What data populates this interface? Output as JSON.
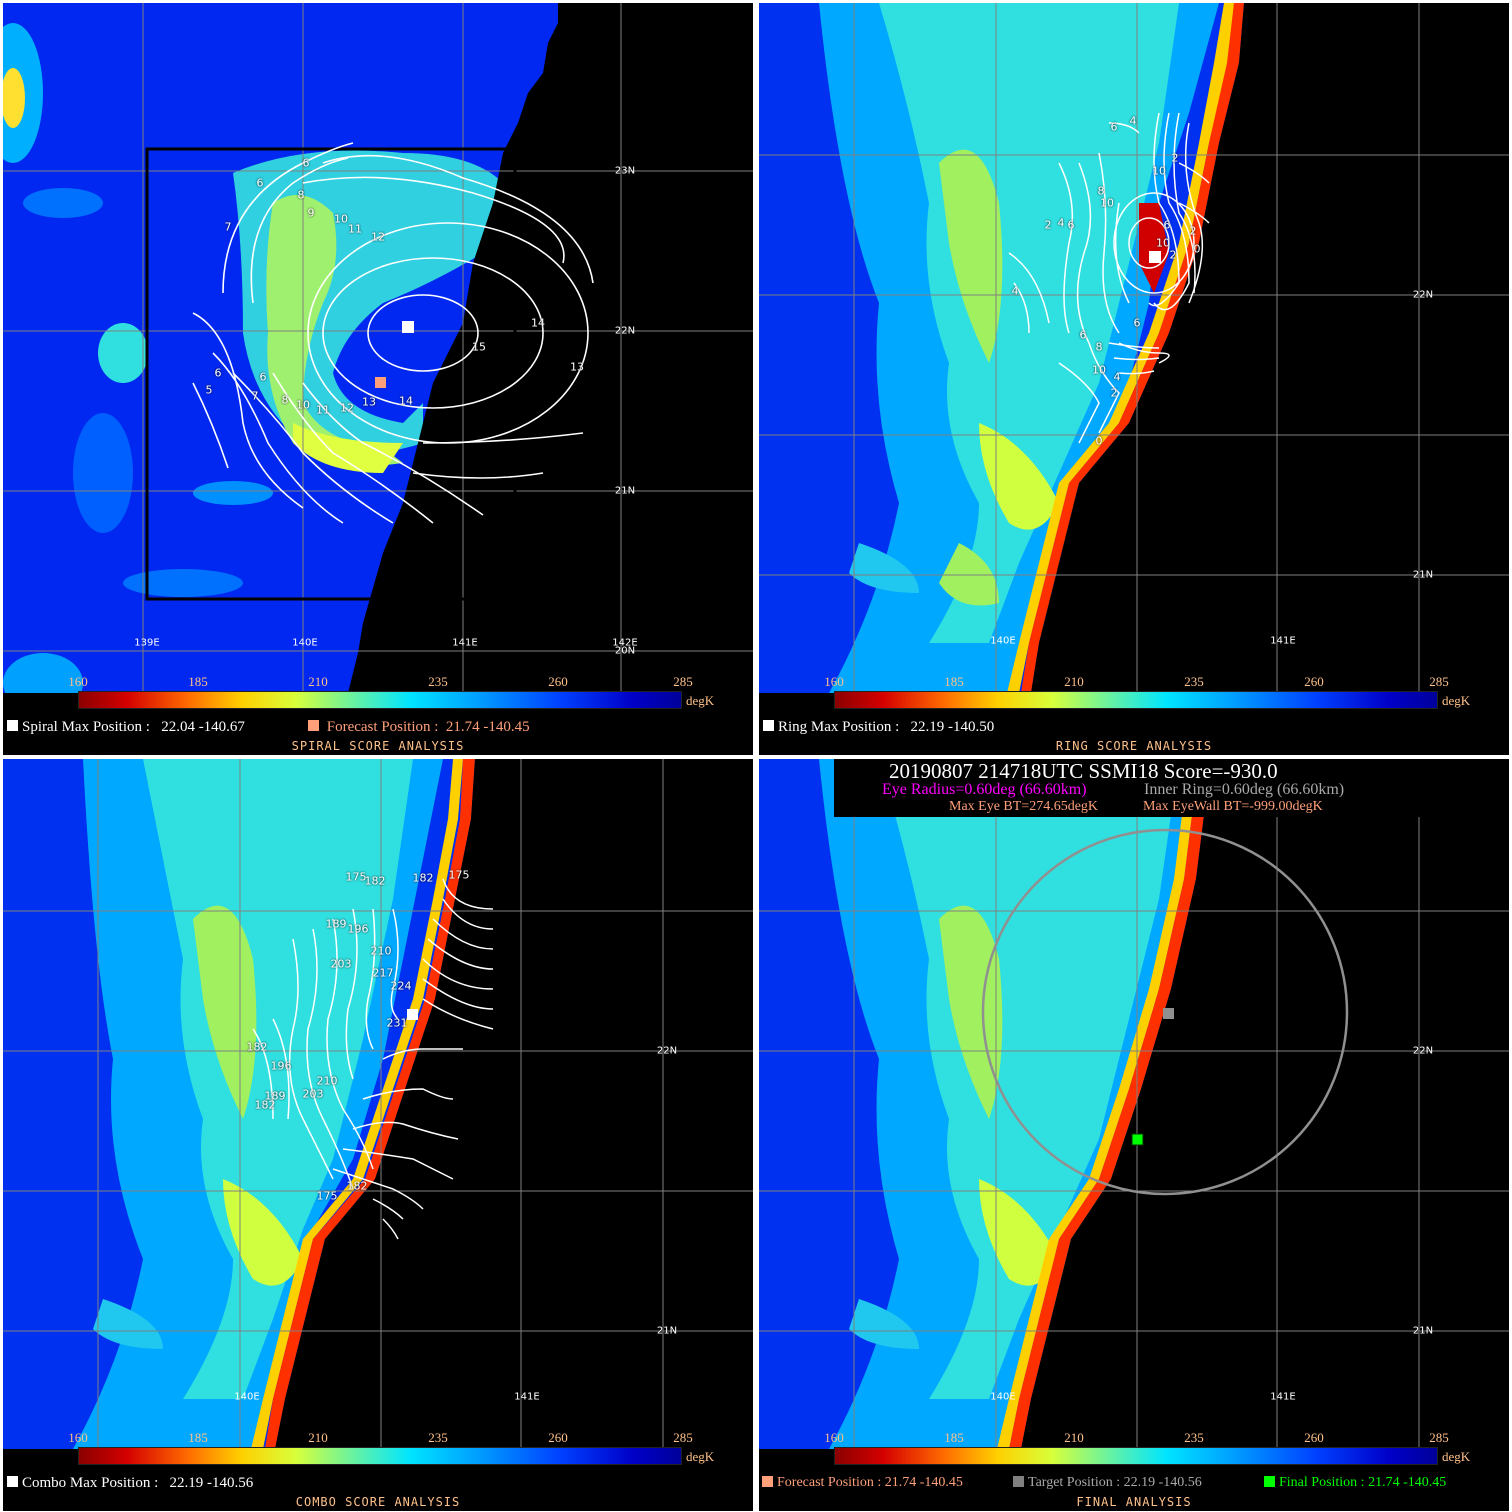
{
  "colorbar": {
    "ticks": [
      "160",
      "185",
      "210",
      "235",
      "260",
      "285"
    ],
    "unit": "degK"
  },
  "panels": {
    "spiral": {
      "title": "SPIRAL SCORE ANALYSIS",
      "max_label": "Spiral Max Position :",
      "max_value": "22.04 -140.67",
      "forecast_label": "Forecast Position :",
      "forecast_value": "21.74 -140.45",
      "lat_labels": [
        "23N",
        "22N",
        "21N",
        "20N"
      ],
      "lon_labels": [
        "139E",
        "140E",
        "141E",
        "142E"
      ],
      "contour_labels": [
        "6",
        "6",
        "8",
        "9",
        "10",
        "11",
        "12",
        "7",
        "6",
        "5",
        "6",
        "7",
        "8",
        "9",
        "10",
        "11",
        "12",
        "13",
        "14",
        "14",
        "15",
        "13"
      ]
    },
    "ring": {
      "title": "RING SCORE ANALYSIS",
      "max_label": "Ring Max Position :",
      "max_value": "22.19 -140.50",
      "lat_labels": [
        "22N",
        "21N"
      ],
      "lon_labels": [
        "140E",
        "141E"
      ],
      "contour_labels": [
        "6",
        "4",
        "2",
        "4",
        "6",
        "8",
        "10",
        "10",
        "2",
        "6",
        "10",
        "2",
        "2",
        "0",
        "4",
        "6",
        "8",
        "6",
        "10",
        "4",
        "2",
        "0"
      ]
    },
    "combo": {
      "title": "COMBO SCORE ANALYSIS",
      "max_label": "Combo Max Position :",
      "max_value": "22.19 -140.56",
      "lat_labels": [
        "22N",
        "21N"
      ],
      "lon_labels": [
        "140E",
        "141E"
      ],
      "contour_labels": [
        "175",
        "182",
        "182",
        "175",
        "189",
        "196",
        "203",
        "210",
        "217",
        "224",
        "231",
        "182",
        "196",
        "189",
        "182",
        "210",
        "203",
        "175",
        "182"
      ]
    },
    "final": {
      "title": "FINAL ANALYSIS",
      "header_line1": "20190807  214718UTC      SSMI18    Score=-930.0",
      "eye_radius": "Eye Radius=0.60deg (66.60km)",
      "inner_ring": "Inner Ring=0.60deg (66.60km)",
      "max_eye_bt": "Max Eye BT=274.65degK",
      "max_eyewall_bt": "Max EyeWall BT=-999.00degK",
      "forecast_label": "Forecast Position : 21.74 -140.45",
      "target_label": "Target Position : 22.19 -140.56",
      "final_label": "Final Position : 21.74 -140.45",
      "lat_labels": [
        "22N",
        "21N"
      ],
      "lon_labels": [
        "140E",
        "141E"
      ]
    }
  },
  "colors": {
    "forecast": "#ffa07a",
    "target": "#808080",
    "final": "#00ff00",
    "eye_radius": "#ff00ff",
    "inner_ring": "#a9a9a9",
    "text_orange": "#ffc18a"
  }
}
